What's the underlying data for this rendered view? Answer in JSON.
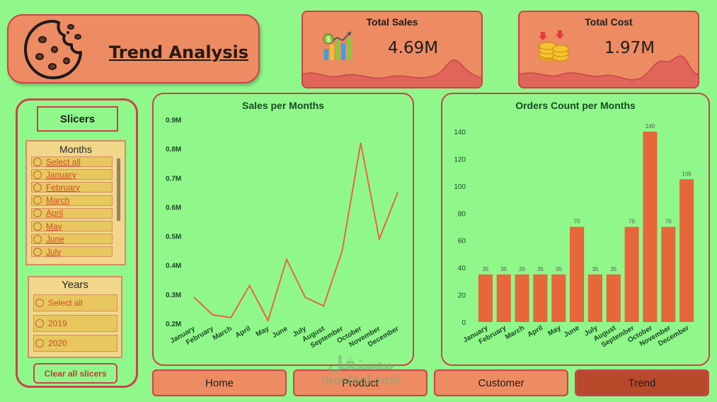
{
  "header": {
    "title": "Trend Analysis",
    "icon": "cookie-icon"
  },
  "kpis": {
    "sales": {
      "title": "Total Sales",
      "value": "4.69M",
      "icon": "sales-growth-chart-icon"
    },
    "cost": {
      "title": "Total Cost",
      "value": "1.97M",
      "icon": "gold-coins-icon"
    }
  },
  "slicers": {
    "title": "Slicers",
    "months": {
      "title": "Months",
      "items": [
        "Select all",
        "January",
        "February",
        "March",
        "April",
        "May",
        "June",
        "July"
      ]
    },
    "years": {
      "title": "Years",
      "items": [
        "Select all",
        "2019",
        "2020"
      ]
    },
    "clear_label": "Clear all slicers"
  },
  "nav": {
    "home": "Home",
    "product": "Product",
    "customer": "Customer",
    "trend": "Trend"
  },
  "watermark": {
    "line1": "مستقل",
    "line2": "mostaql.com"
  },
  "colors": {
    "background": "#90f88a",
    "card": "#ed8b62",
    "border": "#c9434b",
    "line": "#e8673a",
    "bar": "#e8673a",
    "active_nav": "#b8492a"
  },
  "chart_data": [
    {
      "type": "line",
      "title": "Sales per Months",
      "categories": [
        "January",
        "February",
        "March",
        "April",
        "May",
        "June",
        "July",
        "August",
        "September",
        "October",
        "November",
        "December"
      ],
      "series": [
        {
          "values": [
            0.29,
            0.23,
            0.22,
            0.33,
            0.21,
            0.42,
            0.29,
            0.26,
            0.45,
            0.82,
            0.49,
            0.65
          ]
        }
      ],
      "yticks": [
        "0.2M",
        "0.3M",
        "0.4M",
        "0.5M",
        "0.6M",
        "0.7M",
        "0.8M",
        "0.9M"
      ],
      "ylim": [
        0.2,
        0.9
      ],
      "grid": false
    },
    {
      "type": "bar",
      "title": "Orders Count per Months",
      "categories": [
        "January",
        "February",
        "March",
        "April",
        "May",
        "June",
        "July",
        "August",
        "September",
        "October",
        "November",
        "December"
      ],
      "values": [
        35,
        35,
        35,
        35,
        35,
        70,
        35,
        35,
        70,
        140,
        70,
        105
      ],
      "yticks": [
        "0",
        "20",
        "40",
        "60",
        "80",
        "100",
        "120",
        "140"
      ],
      "ylim": [
        0,
        150
      ],
      "data_labels": true,
      "grid": false
    }
  ]
}
